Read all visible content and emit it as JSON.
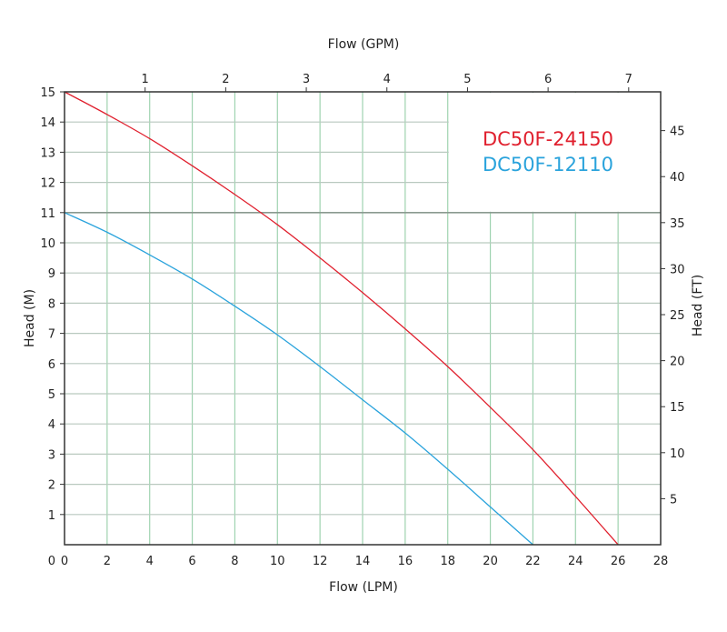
{
  "chart_data": {
    "type": "line",
    "xlabel": "Flow (LPM)",
    "ylabel": "Head (M)",
    "x2label": "Flow (GPM)",
    "y2label": "Head (FT)",
    "xlim": [
      0,
      28
    ],
    "ylim": [
      0,
      15
    ],
    "x_ticks": [
      0,
      2,
      4,
      6,
      8,
      10,
      12,
      14,
      16,
      18,
      20,
      22,
      24,
      26,
      28
    ],
    "y_ticks": [
      1,
      2,
      3,
      4,
      5,
      6,
      7,
      8,
      9,
      10,
      11,
      12,
      13,
      14,
      15
    ],
    "x2_ticks": [
      1,
      2,
      3,
      4,
      5,
      6,
      7
    ],
    "y2_ticks": [
      5,
      10,
      15,
      20,
      25,
      30,
      35,
      40,
      45
    ],
    "grid": true,
    "legend_position": "top-right",
    "series": [
      {
        "name": "DC50F-24150",
        "color": "#e0202e",
        "x": [
          0,
          2,
          4,
          6,
          8,
          10,
          12,
          14,
          16,
          18,
          20,
          22,
          24,
          26
        ],
        "y": [
          15,
          14.25,
          13.45,
          12.55,
          11.6,
          10.6,
          9.5,
          8.35,
          7.15,
          5.9,
          4.55,
          3.15,
          1.6,
          0
        ]
      },
      {
        "name": "DC50F-12110",
        "color": "#2aa3dc",
        "x": [
          0,
          2,
          4,
          6,
          8,
          10,
          12,
          14,
          16,
          18,
          20,
          22
        ],
        "y": [
          11,
          10.35,
          9.6,
          8.8,
          7.9,
          6.95,
          5.9,
          4.8,
          3.7,
          2.5,
          1.25,
          0
        ]
      }
    ]
  }
}
